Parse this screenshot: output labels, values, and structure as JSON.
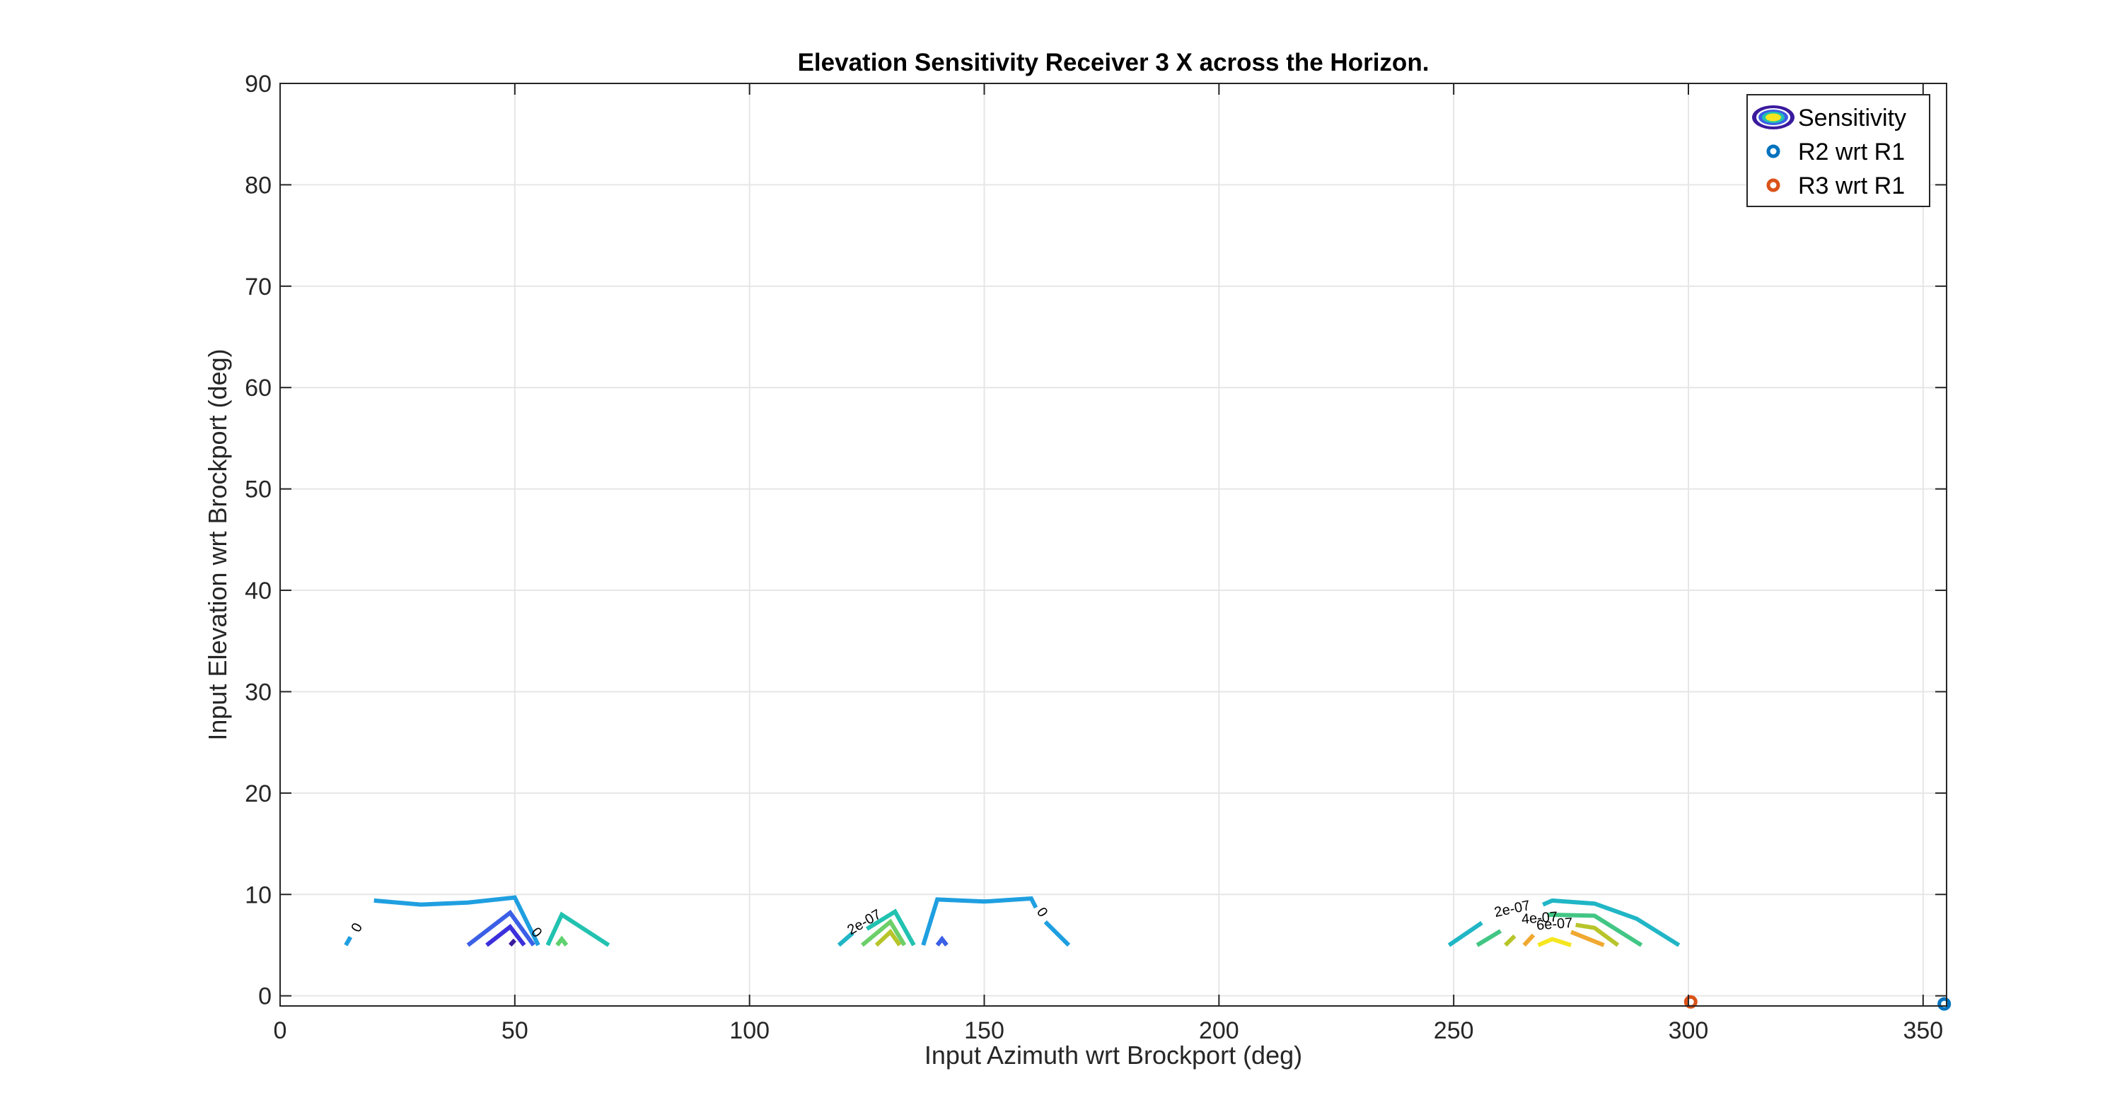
{
  "chart_data": {
    "type": "contour",
    "title": "Elevation Sensitivity Receiver 3 X across the Horizon.",
    "xlabel": "Input Azimuth wrt Brockport (deg)",
    "ylabel": "Input Elevation wrt Brockport (deg)",
    "xlim": [
      0,
      355
    ],
    "ylim": [
      -1,
      90
    ],
    "xticks": [
      0,
      50,
      100,
      150,
      200,
      250,
      300,
      350
    ],
    "yticks": [
      0,
      10,
      20,
      30,
      40,
      50,
      60,
      70,
      80,
      90
    ],
    "xtick_labels": [
      "0",
      "50",
      "100",
      "150",
      "200",
      "250",
      "300",
      "350"
    ],
    "ytick_labels": [
      "0",
      "10",
      "20",
      "30",
      "40",
      "50",
      "60",
      "70",
      "80",
      "90"
    ],
    "grid": true,
    "box": true,
    "legend": {
      "placement": "top-right",
      "entries": [
        {
          "label": "Sensitivity",
          "marker": "contour"
        },
        {
          "label": "R2 wrt R1",
          "marker": "circle",
          "color": "#0072BD"
        },
        {
          "label": "R3 wrt R1",
          "marker": "circle",
          "color": "#D95319"
        }
      ]
    },
    "contours": [
      {
        "color": "#1f9fe0",
        "points": [
          [
            14,
            5
          ],
          [
            15,
            5.8
          ]
        ]
      },
      {
        "color": "#1f9fe0",
        "points": [
          [
            20,
            9.4
          ],
          [
            30,
            9
          ],
          [
            40,
            9.2
          ],
          [
            50,
            9.7
          ],
          [
            55,
            5
          ]
        ]
      },
      {
        "color": "#3b5fe6",
        "points": [
          [
            40,
            5
          ],
          [
            49,
            8.2
          ],
          [
            54,
            5
          ]
        ]
      },
      {
        "color": "#3c2fdc",
        "points": [
          [
            44,
            5
          ],
          [
            49,
            6.8
          ],
          [
            52,
            5
          ]
        ]
      },
      {
        "color": "#3a1a9e",
        "points": [
          [
            49,
            5
          ],
          [
            50,
            5.5
          ]
        ]
      },
      {
        "color": "#21c2b0",
        "points": [
          [
            57,
            5
          ],
          [
            60,
            8
          ],
          [
            70,
            5
          ]
        ]
      },
      {
        "color": "#5fd16f",
        "points": [
          [
            59,
            5
          ],
          [
            60,
            5.6
          ],
          [
            61,
            5
          ]
        ]
      },
      {
        "color": "#20b6c6",
        "points": [
          [
            119,
            5
          ],
          [
            122,
            6.2
          ]
        ]
      },
      {
        "color": "#21c2b0",
        "points": [
          [
            125,
            6.6
          ],
          [
            131,
            8.3
          ],
          [
            135,
            5
          ]
        ]
      },
      {
        "color": "#6ccf69",
        "points": [
          [
            124,
            5
          ],
          [
            130,
            7.3
          ],
          [
            133,
            5
          ]
        ]
      },
      {
        "color": "#b7c52b",
        "points": [
          [
            127,
            5
          ],
          [
            130,
            6.3
          ],
          [
            132,
            5
          ]
        ]
      },
      {
        "color": "#1f9fe0",
        "points": [
          [
            137,
            5
          ],
          [
            140,
            9.5
          ],
          [
            150,
            9.3
          ],
          [
            160,
            9.6
          ],
          [
            161,
            8.7
          ]
        ]
      },
      {
        "color": "#1f9fe0",
        "points": [
          [
            163,
            7.3
          ],
          [
            168,
            5
          ]
        ]
      },
      {
        "color": "#3b5fe6",
        "points": [
          [
            140,
            5
          ],
          [
            141,
            5.6
          ],
          [
            142,
            5
          ]
        ]
      },
      {
        "color": "#20b6c6",
        "points": [
          [
            249,
            5
          ],
          [
            256,
            7.2
          ]
        ]
      },
      {
        "color": "#20b6c6",
        "points": [
          [
            269,
            9
          ],
          [
            271,
            9.4
          ],
          [
            280,
            9.1
          ],
          [
            289,
            7.6
          ],
          [
            298,
            5
          ]
        ]
      },
      {
        "color": "#42c684",
        "points": [
          [
            255,
            5
          ],
          [
            260,
            6.4
          ]
        ]
      },
      {
        "color": "#42c684",
        "points": [
          [
            270,
            8
          ],
          [
            280,
            7.9
          ],
          [
            290,
            5
          ]
        ]
      },
      {
        "color": "#b7c52b",
        "points": [
          [
            261,
            5
          ],
          [
            263,
            5.9
          ]
        ]
      },
      {
        "color": "#b7c52b",
        "points": [
          [
            276,
            7
          ],
          [
            280,
            6.7
          ],
          [
            285,
            5
          ]
        ]
      },
      {
        "color": "#f0a830",
        "points": [
          [
            265,
            5
          ],
          [
            267,
            6
          ]
        ]
      },
      {
        "color": "#f0a830",
        "points": [
          [
            275,
            6.3
          ],
          [
            282,
            5
          ]
        ]
      },
      {
        "color": "#f5e620",
        "points": [
          [
            268,
            5
          ],
          [
            271,
            5.6
          ],
          [
            275,
            5
          ]
        ]
      }
    ],
    "contour_labels": [
      {
        "text": "0",
        "x": 16.5,
        "y": 6.7,
        "angle": -62
      },
      {
        "text": "0",
        "x": 54.5,
        "y": 6.2,
        "angle": 50
      },
      {
        "text": "2e-07",
        "x": 124.5,
        "y": 7.2,
        "angle": -30
      },
      {
        "text": "0",
        "x": 162.2,
        "y": 8.2,
        "angle": 55
      },
      {
        "text": "2e-07",
        "x": 262.5,
        "y": 8.5,
        "angle": -12
      },
      {
        "text": "4e-07",
        "x": 268.3,
        "y": 7.6,
        "angle": -4
      },
      {
        "text": "6e-07",
        "x": 271.5,
        "y": 7,
        "angle": -4
      }
    ],
    "series": [
      {
        "name": "R2 wrt R1",
        "color": "#0072BD",
        "points": [
          [
            354.5,
            -0.8
          ]
        ]
      },
      {
        "name": "R3 wrt R1",
        "color": "#D95319",
        "points": [
          [
            300.5,
            -0.6
          ]
        ]
      }
    ]
  }
}
